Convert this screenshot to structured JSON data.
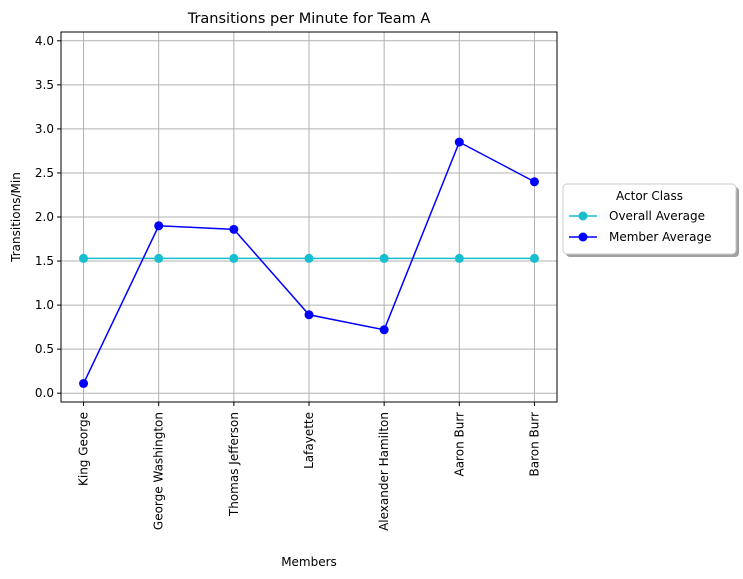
{
  "chart_data": {
    "type": "line",
    "title": "Transitions per Minute for Team A",
    "xlabel": "Members",
    "ylabel": "Transitions/Min",
    "categories": [
      "King George",
      "George Washington",
      "Thomas Jefferson",
      "Lafayette",
      "Alexander Hamilton",
      "Aaron Burr",
      "Baron Burr"
    ],
    "ylim": [
      -0.1,
      4.1
    ],
    "yticks": [
      0.0,
      0.5,
      1.0,
      1.5,
      2.0,
      2.5,
      3.0,
      3.5,
      4.0
    ],
    "ytick_labels": [
      "0.0",
      "0.5",
      "1.0",
      "1.5",
      "2.0",
      "2.5",
      "3.0",
      "3.5",
      "4.0"
    ],
    "grid": true,
    "legend": {
      "title": "Actor Class",
      "placement": "outside-right-center"
    },
    "series": [
      {
        "name": "Overall Average",
        "color": "#17becf",
        "values": [
          1.53,
          1.53,
          1.53,
          1.53,
          1.53,
          1.53,
          1.53
        ]
      },
      {
        "name": "Member Average",
        "color": "#0000ff",
        "values": [
          0.11,
          1.9,
          1.86,
          0.89,
          0.72,
          2.85,
          2.4
        ]
      }
    ]
  }
}
